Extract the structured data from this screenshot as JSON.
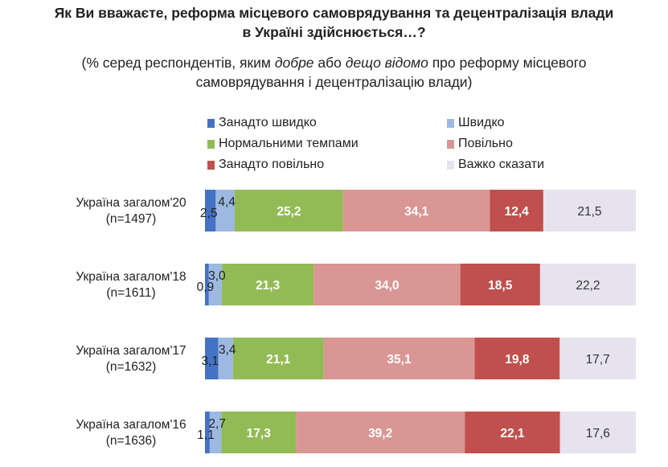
{
  "title_line1": "Як Ви вважаєте, реформа місцевого самоврядування та децентралізація влади",
  "title_line2": "в Україні здійснюється…?",
  "subtitle": {
    "pre": "(% серед респондентів, яким ",
    "em1": "добре",
    "mid": " або ",
    "em2": "дещо відомо",
    "post1": " про реформу місцевого",
    "line2": "самоврядування і децентралізацію влади)"
  },
  "legend": [
    {
      "label": "Занадто швидко",
      "color": "#4472C4"
    },
    {
      "label": "Швидко",
      "color": "#9DB9E2"
    },
    {
      "label": "Нормальними темпами",
      "color": "#92BB55"
    },
    {
      "label": "Повільно",
      "color": "#DA9694"
    },
    {
      "label": "Занадто повільно",
      "color": "#C0504D"
    },
    {
      "label": "Важко сказати",
      "color": "#E6E3EF"
    }
  ],
  "chart_data": {
    "type": "bar",
    "stacked": true,
    "orientation": "horizontal",
    "xlim": [
      0,
      100
    ],
    "categories": [
      {
        "line1": "Україна загалом'20",
        "line2": "(n=1497)"
      },
      {
        "line1": "Україна загалом'18",
        "line2": "(n=1611)"
      },
      {
        "line1": "Україна загалом'17",
        "line2": "(n=1632)"
      },
      {
        "line1": "Україна загалом'16",
        "line2": "(n=1636)"
      }
    ],
    "series": [
      {
        "name": "Занадто швидко",
        "values": [
          2.5,
          0.9,
          3.1,
          1.1
        ],
        "labels": [
          "2,5",
          "0,9",
          "3,1",
          "1,1"
        ]
      },
      {
        "name": "Швидко",
        "values": [
          4.4,
          3.0,
          3.4,
          2.7
        ],
        "labels": [
          "4,4",
          "3,0",
          "3,4",
          "2,7"
        ]
      },
      {
        "name": "Нормальними темпами",
        "values": [
          25.2,
          21.3,
          21.1,
          17.3
        ],
        "labels": [
          "25,2",
          "21,3",
          "21,1",
          "17,3"
        ]
      },
      {
        "name": "Повільно",
        "values": [
          34.1,
          34.0,
          35.1,
          39.2
        ],
        "labels": [
          "34,1",
          "34,0",
          "35,1",
          "39,2"
        ]
      },
      {
        "name": "Занадто повільно",
        "values": [
          12.4,
          18.5,
          19.8,
          22.1
        ],
        "labels": [
          "12,4",
          "18,5",
          "19,8",
          "22,1"
        ]
      },
      {
        "name": "Важко сказати",
        "values": [
          21.5,
          22.2,
          17.7,
          17.6
        ],
        "labels": [
          "21,5",
          "22,2",
          "17,7",
          "17,6"
        ]
      }
    ]
  }
}
